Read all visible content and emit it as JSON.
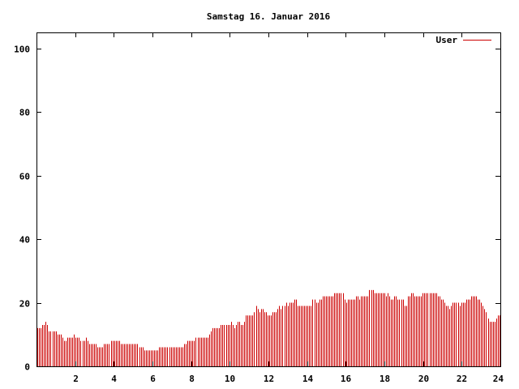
{
  "chart_data": {
    "type": "bar",
    "title": "Samstag 16. Januar 2016",
    "legend": {
      "label": "User",
      "placement": "top-right"
    },
    "xlim": [
      0,
      24
    ],
    "ylim": [
      0,
      105
    ],
    "x_ticks": [
      2,
      4,
      6,
      8,
      10,
      12,
      14,
      16,
      18,
      20,
      22,
      24
    ],
    "y_ticks": [
      0,
      20,
      40,
      60,
      80,
      100
    ],
    "grid": false,
    "series_color": "#cc0000",
    "series": [
      {
        "name": "User",
        "values": [
          12,
          12,
          12,
          13,
          13,
          14,
          13,
          11,
          11,
          11,
          11,
          11,
          10,
          10,
          10,
          9,
          8,
          8,
          9,
          9,
          9,
          9,
          10,
          9,
          9,
          9,
          8,
          8,
          8,
          9,
          8,
          7,
          7,
          7,
          7,
          7,
          6,
          6,
          6,
          6,
          7,
          7,
          7,
          7,
          8,
          8,
          8,
          8,
          8,
          8,
          7,
          7,
          7,
          7,
          7,
          7,
          7,
          7,
          7,
          7,
          7,
          6,
          6,
          6,
          5,
          5,
          5,
          5,
          5,
          5,
          5,
          5,
          5,
          6,
          6,
          6,
          6,
          6,
          6,
          6,
          6,
          6,
          6,
          6,
          6,
          6,
          6,
          6,
          7,
          7,
          8,
          8,
          8,
          8,
          8,
          9,
          9,
          9,
          9,
          9,
          9,
          9,
          9,
          10,
          11,
          12,
          12,
          12,
          12,
          12,
          13,
          13,
          13,
          13,
          13,
          13,
          14,
          13,
          12,
          13,
          14,
          14,
          13,
          13,
          14,
          16,
          16,
          16,
          16,
          16,
          17,
          19,
          18,
          17,
          18,
          18,
          17,
          17,
          16,
          16,
          16,
          17,
          17,
          17,
          18,
          19,
          18,
          19,
          19,
          20,
          19,
          20,
          20,
          20,
          21,
          21,
          19,
          19,
          19,
          19,
          19,
          19,
          19,
          19,
          19,
          21,
          21,
          20,
          20,
          21,
          21,
          22,
          22,
          22,
          22,
          22,
          22,
          22,
          23,
          23,
          23,
          23,
          23,
          23,
          21,
          20,
          21,
          21,
          21,
          21,
          21,
          22,
          22,
          21,
          22,
          22,
          22,
          22,
          22,
          24,
          24,
          24,
          23,
          23,
          23,
          23,
          23,
          23,
          23,
          22,
          23,
          22,
          21,
          21,
          22,
          22,
          21,
          21,
          21,
          21,
          19,
          19,
          22,
          22,
          23,
          23,
          22,
          22,
          22,
          22,
          22,
          23,
          23,
          23,
          23,
          23,
          23,
          23,
          23,
          23,
          22,
          22,
          21,
          21,
          20,
          19,
          19,
          18,
          19,
          20,
          20,
          20,
          20,
          19,
          20,
          20,
          20,
          21,
          21,
          21,
          22,
          22,
          22,
          22,
          21,
          21,
          20,
          19,
          18,
          17,
          15,
          14,
          14,
          14,
          14,
          15,
          16,
          16
        ]
      }
    ]
  }
}
